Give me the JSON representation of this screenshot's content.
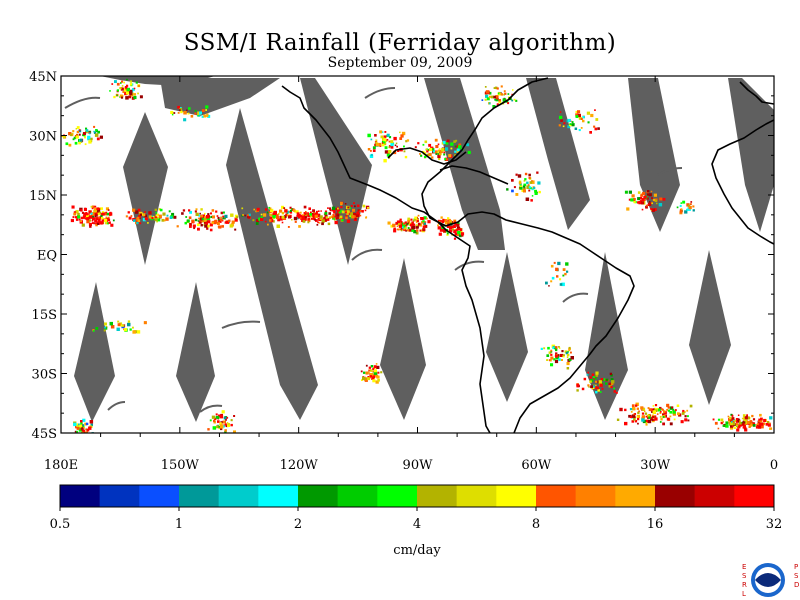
{
  "title": "SSM/I Rainfall (Ferriday algorithm)",
  "subtitle": "September 09, 2009",
  "map": {
    "lon_range": [
      -180,
      0
    ],
    "lat_range": [
      -45,
      45
    ],
    "lat_labels": [
      "45N",
      "30N",
      "15N",
      "EQ",
      "15S",
      "30S",
      "45S"
    ],
    "lat_values": [
      45,
      30,
      15,
      0,
      -15,
      -30,
      -45
    ],
    "lon_labels": [
      "180E",
      "150W",
      "120W",
      "90W",
      "60W",
      "30W",
      "0"
    ],
    "lon_values": [
      -180,
      -150,
      -120,
      -90,
      -60,
      -30,
      0
    ],
    "swath_gap_color": "#5f5f5f",
    "coastline_color": "#000000"
  },
  "colorbar": {
    "label": "cm/day",
    "tick_labels": [
      "0.5",
      "1",
      "2",
      "4",
      "8",
      "16",
      "32"
    ],
    "colors": [
      "#00007f",
      "#0033bf",
      "#0a4fff",
      "#009999",
      "#00cccc",
      "#00ffff",
      "#009900",
      "#00cc00",
      "#00ff00",
      "#b3b300",
      "#dede00",
      "#ffff00",
      "#ff5500",
      "#ff8000",
      "#ffaa00",
      "#990000",
      "#cc0000",
      "#ff0000"
    ]
  },
  "logo": {
    "left_text": "ESRL",
    "right_text": "PSD",
    "center_text": "NOAA"
  }
}
